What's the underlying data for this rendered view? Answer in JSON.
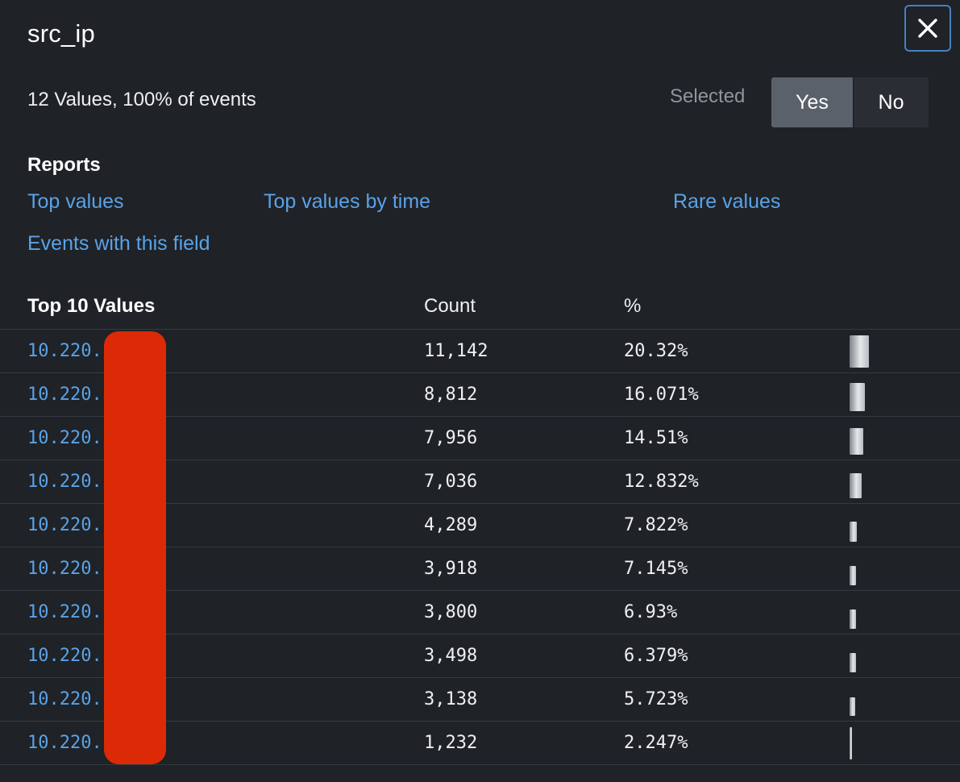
{
  "panel": {
    "title": "src_ip",
    "summary": "12 Values, 100% of events",
    "selected_label": "Selected",
    "toggle": {
      "yes": "Yes",
      "no": "No",
      "selected": "Yes"
    }
  },
  "reports": {
    "heading": "Reports",
    "links": {
      "top_values": "Top values",
      "top_values_by_time": "Top values by time",
      "rare_values": "Rare values",
      "events_with_field": "Events with this field"
    }
  },
  "table": {
    "headers": {
      "value": "Top 10 Values",
      "count": "Count",
      "percent": "%"
    },
    "rows": [
      {
        "value": "10.220.",
        "count": "11,142",
        "percent": "20.32%",
        "pct": 20.32
      },
      {
        "value": "10.220.",
        "count": "8,812",
        "percent": "16.071%",
        "pct": 16.071
      },
      {
        "value": "10.220.",
        "count": "7,956",
        "percent": "14.51%",
        "pct": 14.51
      },
      {
        "value": "10.220.",
        "count": "7,036",
        "percent": "12.832%",
        "pct": 12.832
      },
      {
        "value": "10.220.",
        "count": "4,289",
        "percent": "7.822%",
        "pct": 7.822
      },
      {
        "value": "10.220.",
        "count": "3,918",
        "percent": "7.145%",
        "pct": 7.145
      },
      {
        "value": "10.220.",
        "count": "3,800",
        "percent": "6.93%",
        "pct": 6.93
      },
      {
        "value": "10.220.",
        "count": "3,498",
        "percent": "6.379%",
        "pct": 6.379
      },
      {
        "value": "10.220.",
        "count": "3,138",
        "percent": "5.723%",
        "pct": 5.723
      },
      {
        "value": "10.220.",
        "count": "1,232",
        "percent": "2.247%",
        "pct": 2.247
      }
    ]
  },
  "icons": {
    "close": "close-icon"
  },
  "colors": {
    "background": "#1f2226",
    "link": "#5aa2e8",
    "toggle_active": "#5b616a",
    "close_border": "#4a7fc0",
    "redaction": "#dd2a06"
  }
}
